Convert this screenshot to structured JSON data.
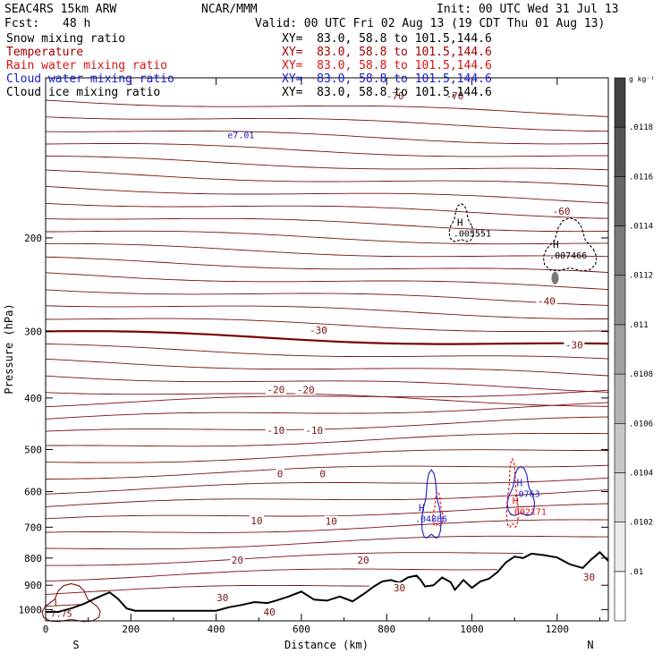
{
  "header": {
    "model": "SEAC4RS 15km ARW",
    "center": "NCAR/MMM",
    "init": "Init: 00 UTC Wed 31 Jul 13",
    "fcst_label": "Fcst:",
    "fcst_value": "48 h",
    "valid": "Valid: 00 UTC Fri 02 Aug 13 (19 CDT Thu 01 Aug 13)"
  },
  "fields": [
    {
      "name": "Snow mixing ratio",
      "xy": "XY=  83.0, 58.8 to 101.5,144.6",
      "color": "#000000"
    },
    {
      "name": "Temperature",
      "xy": "XY=  83.0, 58.8 to 101.5,144.6",
      "color": "#a50000"
    },
    {
      "name": "Rain water mixing ratio",
      "xy": "XY=  83.0, 58.8 to 101.5,144.6",
      "color": "#dd1111"
    },
    {
      "name": "Cloud water mixing ratio",
      "xy": "XY=  83.0, 58.8 to 101.5,144.6",
      "color": "#1a1acc"
    },
    {
      "name": "Cloud ice mixing ratio",
      "xy": "XY=  83.0, 58.8 to 101.5,144.6",
      "color": "#000000"
    }
  ],
  "colors": {
    "temperature": "#7a1010",
    "freezing": "#7a0000",
    "rain": "#dd1111",
    "cloud_water": "#1a1acc",
    "terrain": "#000000"
  },
  "chart_data": {
    "type": "contour",
    "xlabel": "Distance (km)",
    "ylabel": "Pressure (hPa)",
    "xlim": [
      0,
      1320
    ],
    "ylim": [
      1050,
      100
    ],
    "y_scale": "log",
    "x_ticks": [
      0,
      200,
      400,
      600,
      800,
      1000,
      1200
    ],
    "y_ticks": [
      200,
      300,
      400,
      500,
      600,
      700,
      800,
      900,
      1000
    ],
    "x_end_labels": {
      "left": "S",
      "right": "N"
    },
    "temperature_isotherms_C": [
      -70,
      -60,
      -50,
      -40,
      -30,
      -20,
      -10,
      0,
      10,
      20,
      30,
      40
    ],
    "temperature_labels": [
      {
        "x": 820,
        "p": 108,
        "text": "-70"
      },
      {
        "x": 960,
        "p": 108,
        "text": "-70"
      },
      {
        "x": 1210,
        "p": 178,
        "text": "-60"
      },
      {
        "x": 1175,
        "p": 263,
        "text": "-40"
      },
      {
        "x": 640,
        "p": 298,
        "text": "-30"
      },
      {
        "x": 1240,
        "p": 318,
        "text": "-30"
      },
      {
        "x": 540,
        "p": 386,
        "text": "-20"
      },
      {
        "x": 610,
        "p": 386,
        "text": "-20"
      },
      {
        "x": 540,
        "p": 460,
        "text": "-10"
      },
      {
        "x": 630,
        "p": 460,
        "text": "-10"
      },
      {
        "x": 550,
        "p": 555,
        "text": "0"
      },
      {
        "x": 650,
        "p": 555,
        "text": "0"
      },
      {
        "x": 495,
        "p": 680,
        "text": "10"
      },
      {
        "x": 670,
        "p": 682,
        "text": "10"
      },
      {
        "x": 450,
        "p": 807,
        "text": "20"
      },
      {
        "x": 745,
        "p": 807,
        "text": "20"
      },
      {
        "x": 830,
        "p": 910,
        "text": "30"
      },
      {
        "x": 415,
        "p": 950,
        "text": "30"
      },
      {
        "x": 1275,
        "p": 868,
        "text": "30"
      },
      {
        "x": 525,
        "p": 1010,
        "text": "40"
      }
    ],
    "extrema_labels": [
      {
        "x": 965,
        "p": 193,
        "kind": "H",
        "value": ".005551"
      },
      {
        "x": 1190,
        "p": 212,
        "kind": "H",
        "value": ".007466"
      },
      {
        "x": 875,
        "p": 663,
        "kind": "H",
        "value": ".04886"
      },
      {
        "x": 1105,
        "p": 595,
        "kind": "H",
        "value": ".0763"
      },
      {
        "x": 1095,
        "p": 643,
        "kind": "H",
        "value": ".002171"
      },
      {
        "x": 20,
        "p": 1000,
        "kind": "L",
        "value": "7.75"
      },
      {
        "x": 435,
        "p": 126,
        "kind": "",
        "value": "e7.01"
      }
    ],
    "terrain_profile": {
      "x": [
        0,
        30,
        60,
        90,
        120,
        150,
        170,
        190,
        210,
        250,
        300,
        350,
        400,
        430,
        460,
        490,
        520,
        540,
        570,
        600,
        630,
        660,
        690,
        720,
        750,
        770,
        790,
        810,
        830,
        850,
        870,
        880,
        890,
        910,
        930,
        950,
        960,
        980,
        1000,
        1020,
        1040,
        1060,
        1080,
        1100,
        1120,
        1140,
        1170,
        1200,
        1230,
        1260,
        1280,
        1300,
        1310,
        1320
      ],
      "p": [
        1010,
        1010,
        995,
        975,
        950,
        928,
        955,
        995,
        1005,
        1005,
        1005,
        1005,
        1005,
        990,
        980,
        968,
        972,
        962,
        945,
        925,
        958,
        962,
        945,
        965,
        930,
        905,
        885,
        880,
        890,
        870,
        863,
        880,
        905,
        900,
        870,
        888,
        918,
        880,
        910,
        885,
        875,
        850,
        815,
        795,
        800,
        785,
        790,
        798,
        822,
        835,
        805,
        780,
        795,
        810
      ]
    },
    "color_bar": {
      "units": "g kg⁻¹",
      "levels": [
        ".01",
        ".0102",
        ".0104",
        ".0106",
        ".0108",
        ".011",
        ".0112",
        ".0114",
        ".0116",
        ".0118"
      ]
    }
  }
}
